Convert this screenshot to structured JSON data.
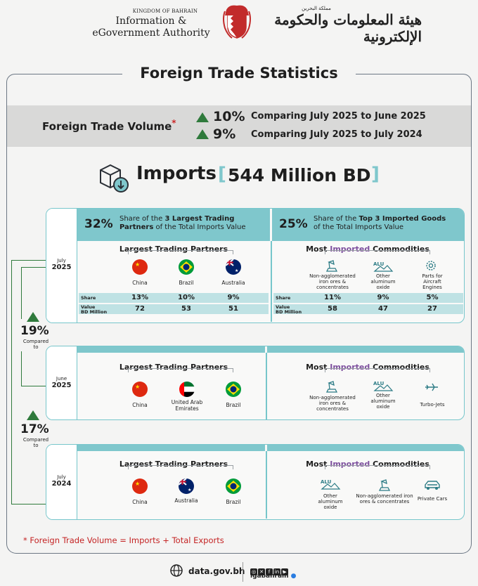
{
  "header": {
    "kingdom": "KINGDOM OF BAHRAIN",
    "authority": "Information & eGovernment Authority",
    "arabic_small": "مملكة البحرين",
    "arabic_main": "هيئة المعلومات والحكومة الإلكترونية"
  },
  "title": "Foreign Trade Statistics",
  "volume": {
    "label": "Foreign Trade Volume",
    "star": "*",
    "rows": [
      {
        "pct": "10%",
        "text": "Comparing July 2025 to June 2025"
      },
      {
        "pct": "9%",
        "text": "Comparing July 2025 to July 2024"
      }
    ],
    "up_color": "#2f7a3c"
  },
  "imports": {
    "word": "Imports",
    "value": "544 Million BD",
    "bracket_left": "[",
    "bracket_right": "]"
  },
  "july2025": {
    "month": "July",
    "year": "2025",
    "partners_pct": "32%",
    "partners_head_a": "Share of the ",
    "partners_head_b": "3 Largest Trading",
    "partners_head_c": "Partners",
    "partners_head_d": " of the Total Imports Value",
    "goods_pct": "25%",
    "goods_head_a": "Share of the ",
    "goods_head_b": "Top 3 Imported Goods",
    "goods_head_c": "of the Total Imports Value",
    "partners_title": "Largest Trading Partners",
    "goods_title_a": "Most ",
    "goods_title_b": "Imported",
    "goods_title_c": " Commodities",
    "partners": [
      "China",
      "Brazil",
      "Australia"
    ],
    "goods": [
      "Non-agglomerated iron ores & concentrates",
      "Other aluminum oxide",
      "Parts for Aircraft Engines"
    ],
    "share_label": "Share",
    "value_label_1": "Value",
    "value_label_2": "BD Million",
    "partner_share": [
      "13%",
      "10%",
      "9%"
    ],
    "partner_value": [
      "72",
      "53",
      "51"
    ],
    "goods_share": [
      "11%",
      "9%",
      "5%"
    ],
    "goods_value": [
      "58",
      "47",
      "27"
    ]
  },
  "compare1": {
    "pct": "19%",
    "line1": "Compared",
    "line2": "to"
  },
  "june2025": {
    "month": "June",
    "year": "2025",
    "partners_title": "Largest Trading Partners",
    "goods_title_a": "Most ",
    "goods_title_b": "Imported",
    "goods_title_c": " Commodities",
    "partners": [
      "China",
      "United Arab Emirates",
      "Brazil"
    ],
    "goods": [
      "Non-agglomerated iron ores & concentrates",
      "Other aluminum oxide",
      "Turbo-Jets"
    ]
  },
  "compare2": {
    "pct": "17%",
    "line1": "Compared",
    "line2": "to"
  },
  "july2024": {
    "month": "July",
    "year": "2024",
    "partners_title": "Largest Trading Partners",
    "goods_title_a": "Most ",
    "goods_title_b": "Imported",
    "goods_title_c": " Commodities",
    "partners": [
      "China",
      "Australia",
      "Brazil"
    ],
    "goods": [
      "Other aluminum oxide",
      "Non-agglomerated iron ores & concentrates",
      "Private Cars"
    ]
  },
  "footnote": "*  Foreign Trade Volume = Imports + Total Exports",
  "footer": {
    "url": "data.gov.bh",
    "handle": "igabahrain",
    "alu": "ALU"
  },
  "colors": {
    "teal": "#7fc7cc",
    "teal_light": "#bfe2e4",
    "green": "#2f7a3c",
    "red": "#c42323",
    "frame": "#6c7784"
  }
}
